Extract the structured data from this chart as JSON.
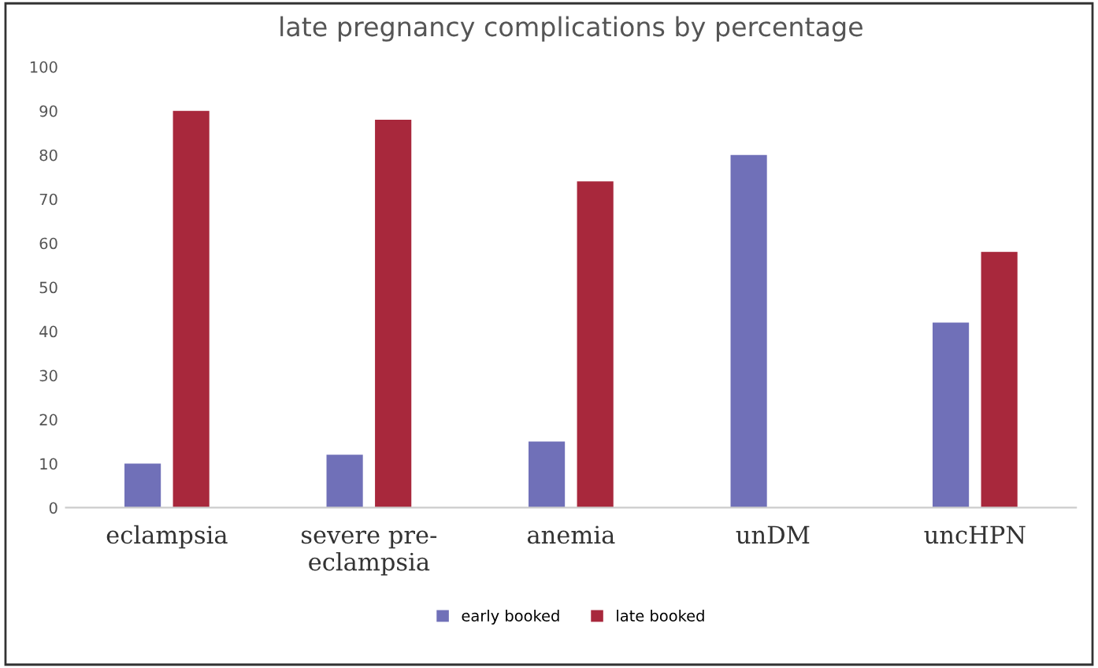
{
  "chart_data": {
    "type": "bar",
    "title": "late pregnancy complications by percentage",
    "categories": [
      "eclampsia",
      "severe pre-\neclampsia",
      "anemia",
      "unDM",
      "uncHPN"
    ],
    "series": [
      {
        "name": "early booked",
        "color": "#7070b8",
        "values": [
          10,
          12,
          15,
          80,
          42
        ]
      },
      {
        "name": "late booked",
        "color": "#a8283c",
        "values": [
          90,
          88,
          74,
          null,
          58
        ]
      }
    ],
    "ylim": [
      0,
      100
    ],
    "yticks": [
      0,
      10,
      20,
      30,
      40,
      50,
      60,
      70,
      80,
      90,
      100
    ],
    "grid": false,
    "legend": "bottom"
  }
}
